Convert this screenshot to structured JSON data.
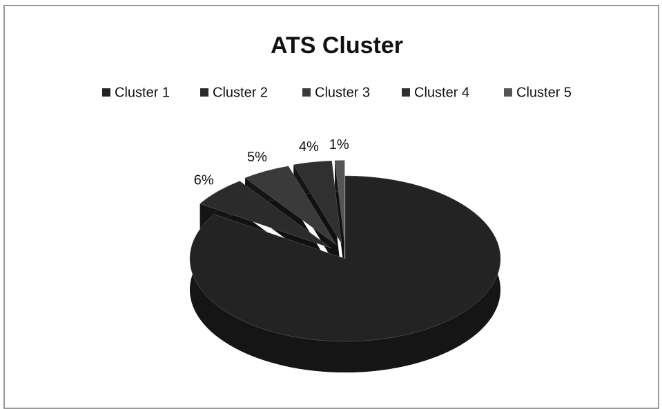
{
  "chart_data": {
    "type": "pie",
    "title": "ATS Cluster",
    "categories": [
      "Cluster 1",
      "Cluster 2",
      "Cluster 3",
      "Cluster 4",
      "Cluster 5"
    ],
    "values": [
      84,
      6,
      5,
      4,
      1
    ],
    "value_labels": [
      null,
      "6%",
      "5%",
      "4%",
      "1%"
    ],
    "colors": [
      "#232323",
      "#2b2b2b",
      "#3a3a3a",
      "#303030",
      "#555555"
    ],
    "legend": "top"
  }
}
